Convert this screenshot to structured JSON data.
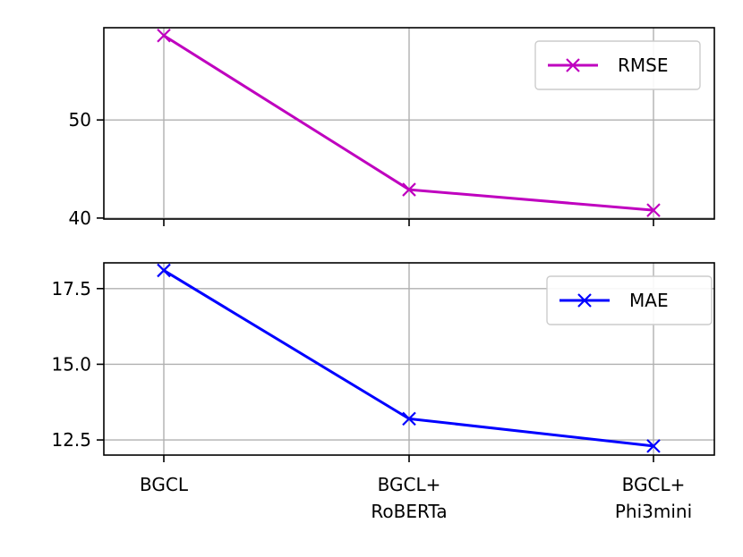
{
  "chart_data": [
    {
      "type": "line",
      "categories": [
        "BGCL",
        "BGCL+\nRoBERTa",
        "BGCL+\nPhi3mini"
      ],
      "series": [
        {
          "name": "RMSE",
          "values": [
            58.6,
            42.9,
            40.8
          ],
          "color": "#bf00bf",
          "marker": "x"
        }
      ],
      "yticks": [
        40,
        50
      ],
      "ylim": [
        39.9,
        59.4
      ],
      "grid": true,
      "legend": "top-right",
      "show_x_tick_labels": false
    },
    {
      "type": "line",
      "categories": [
        "BGCL",
        "BGCL+\nRoBERTa",
        "BGCL+\nPhi3mini"
      ],
      "series": [
        {
          "name": "MAE",
          "values": [
            18.1,
            13.2,
            12.3
          ],
          "color": "#0000ff",
          "marker": "x"
        }
      ],
      "yticks": [
        "12.5",
        "15.0",
        "17.5"
      ],
      "ylim": [
        12.0,
        18.35
      ],
      "grid": true,
      "legend": "top-right",
      "show_x_tick_labels": true
    }
  ]
}
